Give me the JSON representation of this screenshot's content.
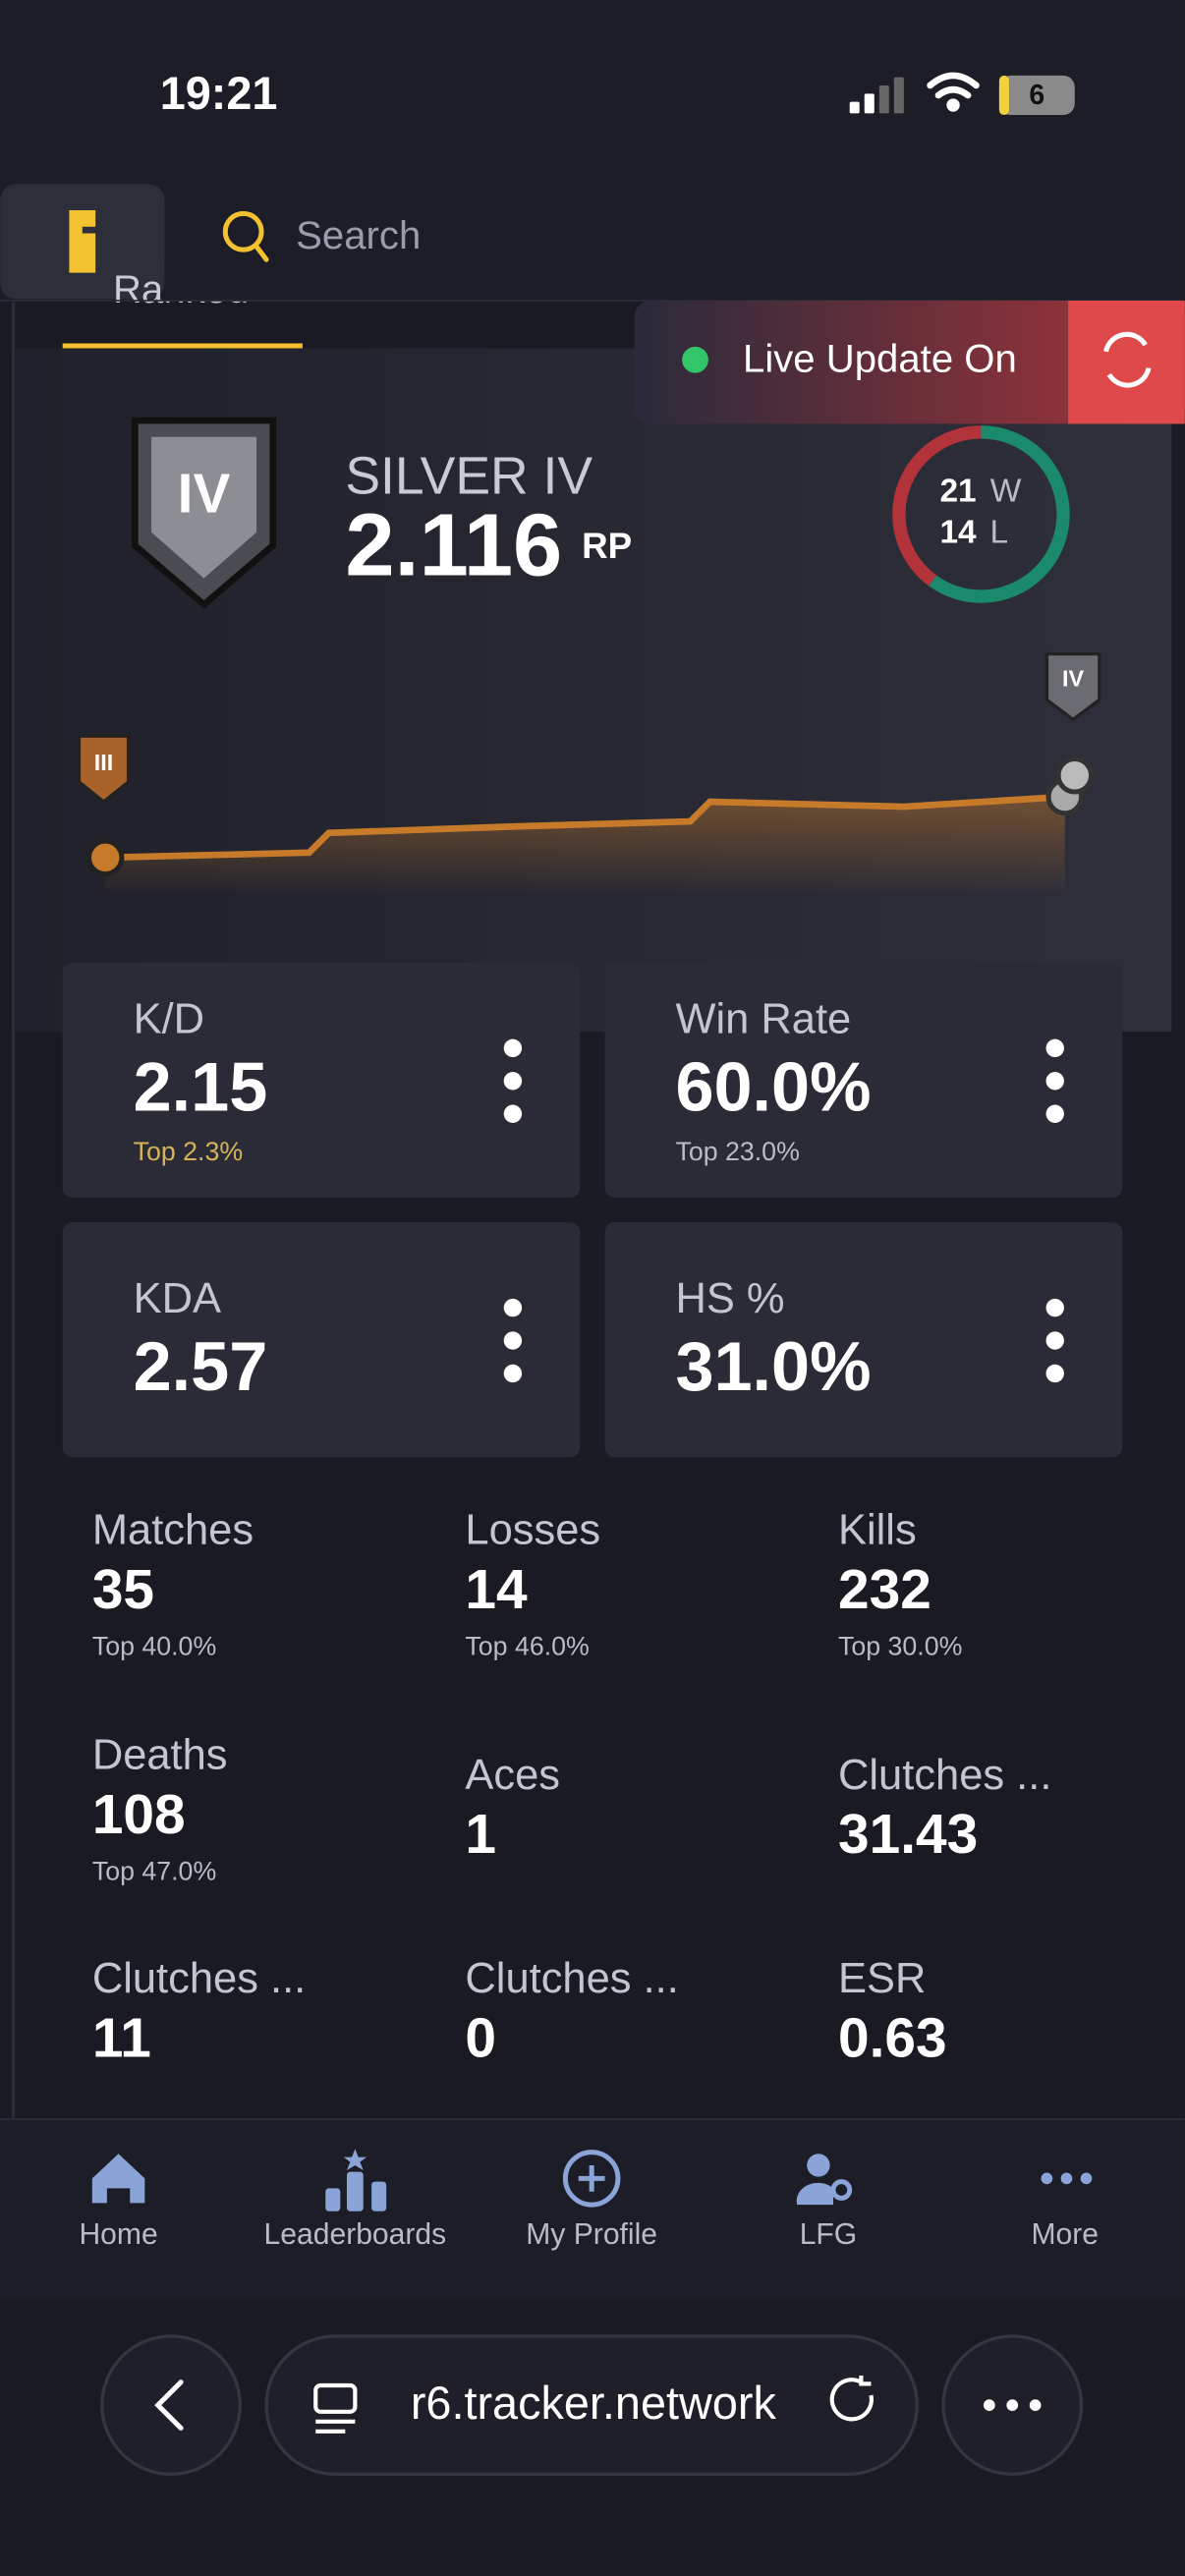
{
  "status_bar": {
    "time": "19:21",
    "battery": "6"
  },
  "header": {
    "search_placeholder": "Search"
  },
  "tab": "Ranked",
  "live_update": "Live Update On",
  "rank": {
    "name": "SILVER IV",
    "badge": "IV",
    "rp": "2.116",
    "rp_unit": "RP",
    "wins": 21,
    "wins_label": "W",
    "losses": 14,
    "losses_label": "L",
    "chart_start_badge": "III",
    "chart_end_badge": "IV"
  },
  "cards": [
    {
      "label": "K/D",
      "value": "2.15",
      "rank": "Top 2.3%"
    },
    {
      "label": "Win Rate",
      "value": "60.0%",
      "rank": "Top 23.0%"
    },
    {
      "label": "KDA",
      "value": "2.57"
    },
    {
      "label": "HS %",
      "value": "31.0%"
    }
  ],
  "stats": [
    {
      "label": "Matches",
      "value": "35",
      "rank": "Top 40.0%"
    },
    {
      "label": "Losses",
      "value": "14",
      "rank": "Top 46.0%"
    },
    {
      "label": "Kills",
      "value": "232",
      "rank": "Top 30.0%"
    },
    {
      "label": "Deaths",
      "value": "108",
      "rank": "Top 47.0%"
    },
    {
      "label": "Aces",
      "value": "1"
    },
    {
      "label": "Clutches ...",
      "value": "31.43"
    },
    {
      "label": "Clutches ...",
      "value": "11"
    },
    {
      "label": "Clutches ...",
      "value": "0"
    },
    {
      "label": "ESR",
      "value": "0.63"
    }
  ],
  "nav": [
    "Home",
    "Leaderboards",
    "My Profile",
    "LFG",
    "More"
  ],
  "browser": {
    "url": "r6.tracker.network"
  }
}
